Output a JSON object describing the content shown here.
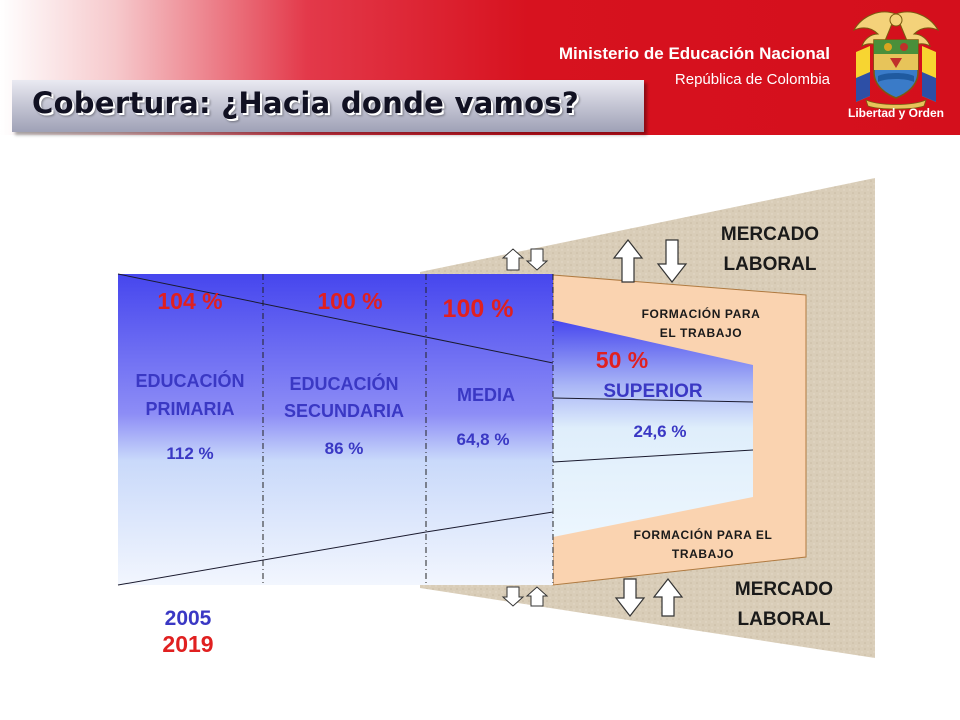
{
  "header": {
    "ministry": "Ministerio de Educación Nacional",
    "country": "República de Colombia",
    "motto": "Libertad y Orden",
    "emblem_icon": "colombia-coat-of-arms-icon",
    "band_color": "#d40f1c"
  },
  "title": "Cobertura: ¿Hacia donde vamos?",
  "diagram": {
    "segments": [
      {
        "name": "EDUCACIÓN PRIMARIA",
        "line1": "EDUCACIÓN",
        "line2": "PRIMARIA",
        "value_2005": "112 %",
        "target_2019": "104 %"
      },
      {
        "name": "EDUCACIÓN SECUNDARIA",
        "line1": "EDUCACIÓN",
        "line2": "SECUNDARIA",
        "value_2005": "86 %",
        "target_2019": "100 %"
      },
      {
        "name": "MEDIA",
        "line1": "MEDIA",
        "value_2005": "64,8 %",
        "target_2019": "100 %"
      },
      {
        "name": "SUPERIOR",
        "line1": "SUPERIOR",
        "value_2005": "24,6 %",
        "target_2019": "50 %"
      }
    ],
    "training_top": {
      "line1": "FORMACIÓN PARA",
      "line2": "EL TRABAJO"
    },
    "training_bottom": {
      "line1": "FORMACIÓN PARA EL",
      "line2": "TRABAJO"
    },
    "market_top": {
      "line1": "MERCADO",
      "line2": "LABORAL"
    },
    "market_bottom": {
      "line1": "MERCADO",
      "line2": "LABORAL"
    },
    "year_current": "2005",
    "year_target": "2019",
    "colors": {
      "blue_text": "#3a38c4",
      "red_text": "#e02020",
      "funnel_blue": "#5a5af0",
      "peach": "#fad3b0",
      "sand": "#d9cdb8"
    }
  }
}
